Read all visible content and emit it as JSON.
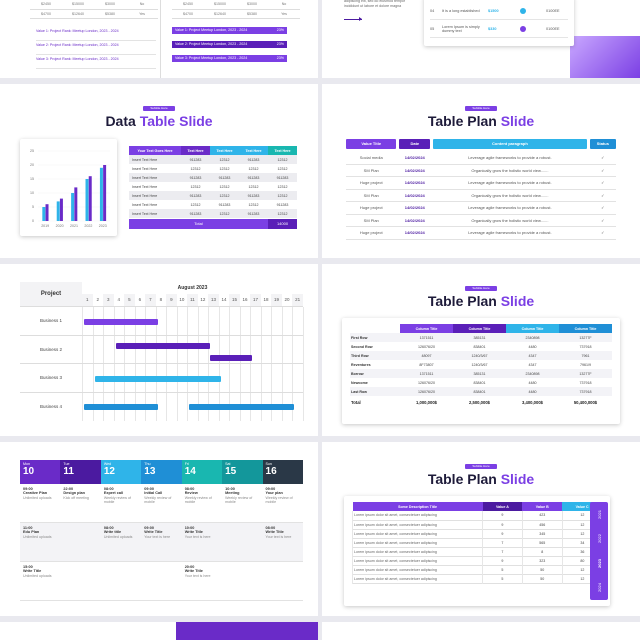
{
  "top_left": {
    "rows": [
      [
        "$2450",
        "$15000",
        "$3000",
        "No"
      ],
      [
        "$4700",
        "$12640",
        "$5380",
        "Yes"
      ]
    ],
    "values": [
      "Value 1: Project Rank: Meetup London, 2023 - 2024",
      "Value 2: Project Rank: Meetup London, 2023 - 2024",
      "Value 3: Project Rank: Meetup London, 2023 - 2024"
    ],
    "bars": [
      {
        "label": "Value 1: Project Meetup London, 2023 - 2024",
        "pct": "23%"
      },
      {
        "label": "Value 2: Project Meetup London, 2023 - 2024",
        "pct": "23%"
      },
      {
        "label": "Value 3: Project Meetup London, 2023 - 2024",
        "pct": "23%"
      }
    ],
    "small_rows": [
      [
        "$2450",
        "$15000",
        "$3000",
        "No"
      ],
      [
        "$4700",
        "$12640",
        "$5380",
        "Yes"
      ]
    ]
  },
  "top_right": {
    "text": "adipiscing elit, sed do eiusmod tempor incididunt ut labore et dolore magna",
    "rows": [
      {
        "num": "04",
        "desc": "It is a long established",
        "v1": "$1500",
        "v2": "0100EE"
      },
      {
        "num": "05",
        "desc": "Lorem Ipsum is simply dummy text",
        "v1": "$330",
        "v2": "0100EE"
      }
    ]
  },
  "data_table": {
    "subtitle": "Subtitle Here",
    "title": "Data",
    "title_accent": "Table Slide",
    "headers": [
      "Your Text Goes Here",
      "Text Here",
      "Text Here",
      "Text Here",
      "Text Here"
    ],
    "rows": [
      [
        "Insert Text Here",
        "911283",
        "12312",
        "911283",
        "12312"
      ],
      [
        "Insert Text Here",
        "12312",
        "12312",
        "12312",
        "12312"
      ],
      [
        "Insert Text Here",
        "911283",
        "911283",
        "911283",
        "911283"
      ],
      [
        "Insert Text Here",
        "12312",
        "12312",
        "12312",
        "12312"
      ],
      [
        "Insert Text Here",
        "911283",
        "12312",
        "911283",
        "12312"
      ],
      [
        "Insert Text Here",
        "12312",
        "911283",
        "12312",
        "911283"
      ],
      [
        "Insert Text Here",
        "911283",
        "12312",
        "911283",
        "12312"
      ]
    ],
    "total_label": "Total",
    "total_value": "14000",
    "chart_data": {
      "type": "bar",
      "categories": [
        "2019",
        "2020",
        "2021",
        "2022",
        "2023"
      ],
      "series": [
        {
          "values": [
            5,
            7,
            10,
            15,
            19
          ]
        },
        {
          "values": [
            6,
            8,
            12,
            16,
            20
          ]
        }
      ],
      "yticks": [
        "0",
        "5",
        "10",
        "15",
        "20",
        "25"
      ],
      "ylim": [
        0,
        25
      ],
      "colors": [
        "#2fb4e9",
        "#6a2bc8"
      ]
    }
  },
  "plan1": {
    "subtitle": "Subtitle Here",
    "title": "Table Plan",
    "title_accent": "Slide",
    "headers": [
      "Value Title",
      "Date",
      "Content paragraph",
      "Status"
    ],
    "rows": [
      [
        "Social media",
        "14/02/2024",
        "Leverage agile frameworks to provide a robust.",
        "✓"
      ],
      [
        "SM Plan",
        "14/02/2024",
        "Organically grow the holistic world view.......",
        "✓"
      ],
      [
        "Huge project",
        "14/02/2024",
        "Leverage agile frameworks to provide a robust.",
        "✓"
      ],
      [
        "SM Plan",
        "14/02/2024",
        "Organically grow the holistic world view.......",
        "✓"
      ],
      [
        "Huge project",
        "14/02/2024",
        "Leverage agile frameworks to provide a robust.",
        "✓"
      ],
      [
        "SM Plan",
        "14/02/2024",
        "Organically grow the holistic world view.......",
        "✓"
      ],
      [
        "Huge project",
        "14/02/2024",
        "Leverage agile frameworks to provide a robust.",
        "✓"
      ]
    ]
  },
  "gantt": {
    "project_label": "Project",
    "month": "August 2023",
    "days": [
      "1",
      "2",
      "3",
      "4",
      "5",
      "6",
      "7",
      "8",
      "9",
      "10",
      "11",
      "12",
      "13",
      "14",
      "15",
      "16",
      "17",
      "18",
      "19",
      "20",
      "21"
    ],
    "businesses": [
      "Business 1",
      "Business 2",
      "Business 3",
      "Business 4"
    ],
    "tasks": [
      {
        "row": 0,
        "start": 1,
        "end": 8,
        "color": "#7b3fe4"
      },
      {
        "row": 1,
        "start": 4,
        "end": 13,
        "color": "#5a1fb8"
      },
      {
        "row": 1,
        "start": 13,
        "end": 17,
        "color": "#5a1fb8"
      },
      {
        "row": 2,
        "start": 2,
        "end": 14,
        "color": "#2fb4e9"
      },
      {
        "row": 3,
        "start": 1,
        "end": 8,
        "color": "#1f8fd6"
      },
      {
        "row": 3,
        "start": 11,
        "end": 21,
        "color": "#1f8fd6"
      }
    ]
  },
  "plan2": {
    "subtitle": "Subtitle Here",
    "title": "Table Plan",
    "title_accent": "Slide",
    "headers": [
      "",
      "Column Title",
      "Column Title",
      "Column Title",
      "Column Title"
    ],
    "rows": [
      [
        "First Row",
        "1371511",
        "385131",
        "2340898",
        "13277F"
      ],
      [
        "Second Row",
        "126076/20",
        "838401",
        "4480",
        "737918"
      ],
      [
        "Third Row",
        "48097",
        "1240/3/67",
        "4347",
        "7961"
      ],
      [
        "Reventures",
        "8F73807",
        "1240/3/67",
        "4347",
        "7961/9"
      ],
      [
        "Borrow",
        "1371511",
        "385131",
        "2340898",
        "13277F"
      ],
      [
        "Newcome",
        "126076/20",
        "838401",
        "4480",
        "737918"
      ],
      [
        "Last Row",
        "126076/20",
        "838401",
        "4480",
        "737918"
      ]
    ],
    "total": [
      "Total",
      "1,000,000$",
      "2,500,000$",
      "3,400,000$",
      "50,400,000$"
    ]
  },
  "calendar": {
    "days": [
      {
        "name": "Mon",
        "num": "10",
        "color": "#6a2bc8"
      },
      {
        "name": "Tue",
        "num": "11",
        "color": "#4b1aa0"
      },
      {
        "name": "Wed",
        "num": "12",
        "color": "#2fb4e9"
      },
      {
        "name": "Thu",
        "num": "13",
        "color": "#1f8fd6"
      },
      {
        "name": "Fri",
        "num": "14",
        "color": "#19b7b0"
      },
      {
        "name": "Sat",
        "num": "15",
        "color": "#13979b"
      },
      {
        "name": "Sun",
        "num": "16",
        "color": "#2a3847"
      }
    ],
    "events": [
      [
        {
          "time": "09:00",
          "title": "Creative Plan",
          "desc": "Unlimited uploads"
        },
        {
          "time": "11:00",
          "title": "Edu Plan",
          "desc": "Unlimited uploads"
        },
        {
          "time": "15:00",
          "title": "Write Title",
          "desc": "Unlimited uploads"
        }
      ],
      [
        {
          "time": "22:00",
          "title": "Design plan",
          "desc": "Kick off meeting"
        },
        {
          "time": "",
          "title": "",
          "desc": ""
        },
        {
          "time": "",
          "title": "",
          "desc": ""
        }
      ],
      [
        {
          "time": "08:00",
          "title": "Expert call",
          "desc": "Weekly review of mobile"
        },
        {
          "time": "08:00",
          "title": "Write title",
          "desc": "Unlimited uploads"
        },
        {
          "time": "",
          "title": "",
          "desc": ""
        }
      ],
      [
        {
          "time": "09:00",
          "title": "Initial Call",
          "desc": "Weekly review of mobile"
        },
        {
          "time": "09:00",
          "title": "Write Title",
          "desc": "Your text is here"
        },
        {
          "time": "",
          "title": "",
          "desc": ""
        }
      ],
      [
        {
          "time": "08:00",
          "title": "Review",
          "desc": "Weekly review of mobile"
        },
        {
          "time": "10:00",
          "title": "Write Title",
          "desc": "Your text is here"
        },
        {
          "time": "20:00",
          "title": "Write Title",
          "desc": "Your text is here"
        }
      ],
      [
        {
          "time": "10:00",
          "title": "Meeting",
          "desc": "Weekly review of mobile"
        },
        {
          "time": "",
          "title": "",
          "desc": ""
        },
        {
          "time": "",
          "title": "",
          "desc": ""
        }
      ],
      [
        {
          "time": "09:00",
          "title": "Your plan",
          "desc": "Weekly review of mobile"
        },
        {
          "time": "08:00",
          "title": "Write Title",
          "desc": "Your text is here"
        },
        {
          "time": "",
          "title": "",
          "desc": ""
        }
      ]
    ]
  },
  "plan3": {
    "subtitle": "Subtitle Here",
    "title": "Table Plan",
    "title_accent": "Slide",
    "headers": [
      "Some Description Title",
      "Value A",
      "Value B",
      "Value C"
    ],
    "rows": [
      [
        "Lorem ipsum dolor sit amet, consectetuer adipiscing",
        "9",
        "423",
        "12"
      ],
      [
        "Lorem ipsum dolor sit amet, consectetuer adipiscing",
        "9",
        "456",
        "12"
      ],
      [
        "Lorem ipsum dolor sit amet, consectetuer adipiscing",
        "9",
        "345",
        "12"
      ],
      [
        "Lorem ipsum dolor sit amet, consectetuer adipiscing",
        "7",
        "565",
        "34"
      ],
      [
        "Lorem ipsum dolor sit amet, consectetuer adipiscing",
        "7",
        "8",
        "36"
      ],
      [
        "Lorem ipsum dolor sit amet, consectetuer adipiscing",
        "9",
        "323",
        "80"
      ],
      [
        "Lorem ipsum dolor sit amet, consectetuer adipiscing",
        "5",
        "50",
        "12"
      ],
      [
        "Lorem ipsum dolor sit amet, consectetuer adipiscing",
        "5",
        "50",
        "12"
      ]
    ],
    "years": [
      "2021",
      "2022",
      "2023",
      "2024"
    ],
    "colors": {
      "purple": "#7b3fe4",
      "dark": "#4b1aa0",
      "cyan": "#2fb4e9"
    }
  }
}
